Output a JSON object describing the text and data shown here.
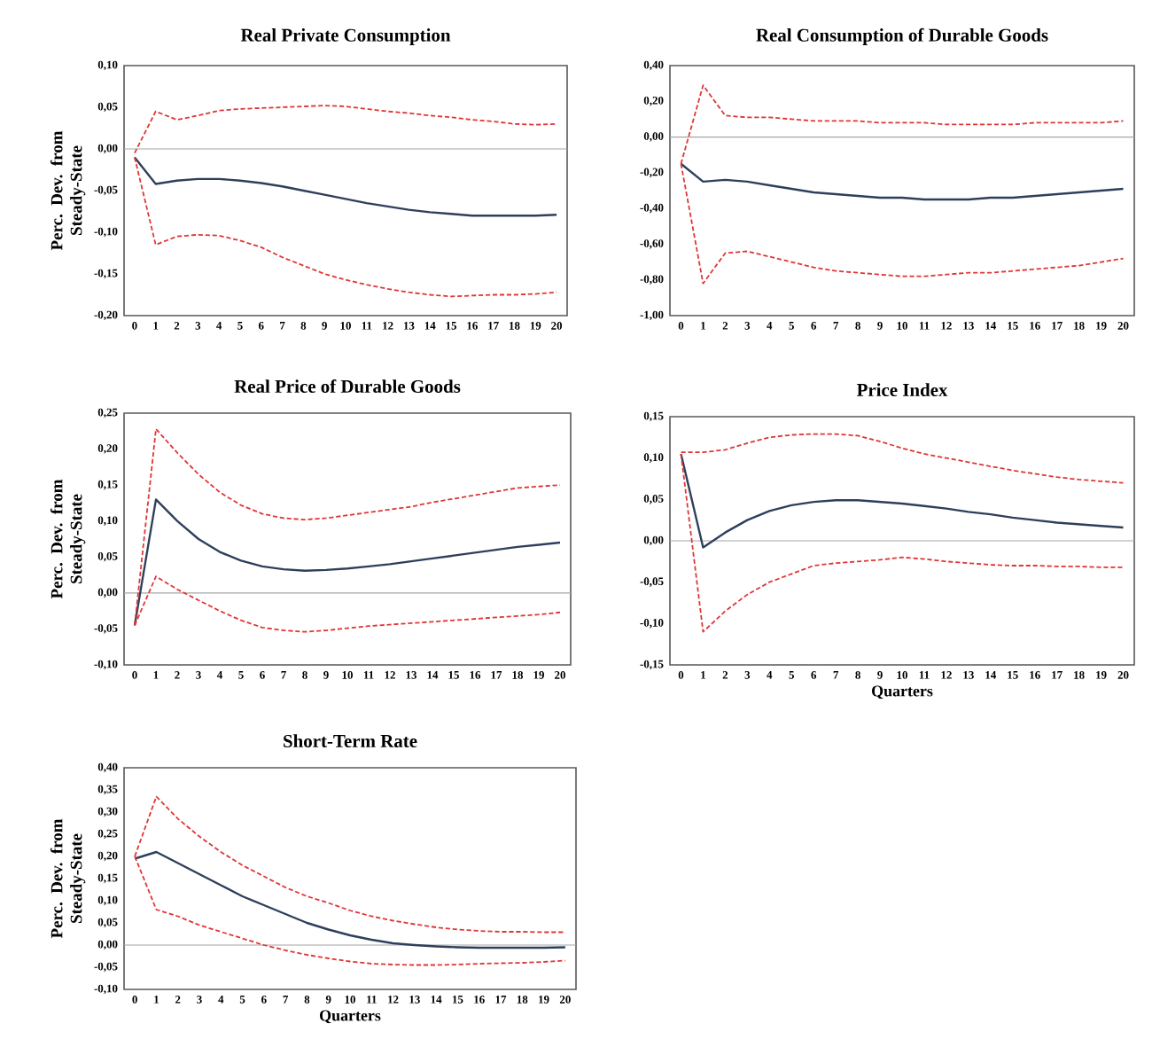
{
  "chart_data": [
    {
      "type": "line",
      "title": "Real Private Consumption",
      "ylabel": "Perc. Dev. from Steady-State",
      "categories": [
        "0",
        "1",
        "2",
        "3",
        "4",
        "5",
        "6",
        "7",
        "8",
        "9",
        "10",
        "11",
        "12",
        "13",
        "14",
        "15",
        "16",
        "17",
        "18",
        "19",
        "20"
      ],
      "ylim": [
        -0.2,
        0.1
      ],
      "yticks": [
        {
          "value": -0.2,
          "label": "-0,20"
        },
        {
          "value": -0.15,
          "label": "-0,15"
        },
        {
          "value": -0.1,
          "label": "-0,10"
        },
        {
          "value": -0.05,
          "label": "-0,05"
        },
        {
          "value": 0,
          "label": "0,00"
        },
        {
          "value": 0.05,
          "label": "0,05"
        },
        {
          "value": 0.1,
          "label": "0,10"
        }
      ],
      "series": [
        {
          "color": "#2e3f5c",
          "line_style": "solid",
          "values": [
            -0.01,
            -0.042,
            -0.038,
            -0.036,
            -0.036,
            -0.038,
            -0.041,
            -0.045,
            -0.05,
            -0.055,
            -0.06,
            -0.065,
            -0.069,
            -0.073,
            -0.076,
            -0.078,
            -0.08,
            -0.08,
            -0.08,
            -0.08,
            -0.079
          ]
        },
        {
          "color": "#e03535",
          "line_style": "dashed",
          "values": [
            -0.005,
            0.045,
            0.035,
            0.04,
            0.046,
            0.048,
            0.049,
            0.05,
            0.051,
            0.052,
            0.051,
            0.048,
            0.045,
            0.043,
            0.04,
            0.038,
            0.035,
            0.033,
            0.03,
            0.029,
            0.03
          ]
        },
        {
          "color": "#e03535",
          "line_style": "dashed",
          "values": [
            -0.01,
            -0.115,
            -0.105,
            -0.103,
            -0.104,
            -0.11,
            -0.118,
            -0.13,
            -0.14,
            -0.15,
            -0.157,
            -0.163,
            -0.168,
            -0.172,
            -0.175,
            -0.177,
            -0.176,
            -0.175,
            -0.175,
            -0.174,
            -0.172
          ]
        }
      ]
    },
    {
      "type": "line",
      "title": "Real Consumption of Durable Goods",
      "categories": [
        "0",
        "1",
        "2",
        "3",
        "4",
        "5",
        "6",
        "7",
        "8",
        "9",
        "10",
        "11",
        "12",
        "13",
        "14",
        "15",
        "16",
        "17",
        "18",
        "19",
        "20"
      ],
      "ylim": [
        -1.0,
        0.4
      ],
      "yticks": [
        {
          "value": -1.0,
          "label": "-1,00"
        },
        {
          "value": -0.8,
          "label": "-0,80"
        },
        {
          "value": -0.6,
          "label": "-0,60"
        },
        {
          "value": -0.4,
          "label": "-0,40"
        },
        {
          "value": -0.2,
          "label": "-0,20"
        },
        {
          "value": 0,
          "label": "0,00"
        },
        {
          "value": 0.2,
          "label": "0,20"
        },
        {
          "value": 0.4,
          "label": "0,40"
        }
      ],
      "series": [
        {
          "color": "#2e3f5c",
          "line_style": "solid",
          "values": [
            -0.15,
            -0.25,
            -0.24,
            -0.25,
            -0.27,
            -0.29,
            -0.31,
            -0.32,
            -0.33,
            -0.34,
            -0.34,
            -0.35,
            -0.35,
            -0.35,
            -0.34,
            -0.34,
            -0.33,
            -0.32,
            -0.31,
            -0.3,
            -0.29
          ]
        },
        {
          "color": "#e03535",
          "line_style": "dashed",
          "values": [
            -0.15,
            0.29,
            0.12,
            0.11,
            0.11,
            0.1,
            0.09,
            0.09,
            0.09,
            0.08,
            0.08,
            0.08,
            0.07,
            0.07,
            0.07,
            0.07,
            0.08,
            0.08,
            0.08,
            0.08,
            0.09
          ]
        },
        {
          "color": "#e03535",
          "line_style": "dashed",
          "values": [
            -0.15,
            -0.82,
            -0.65,
            -0.64,
            -0.67,
            -0.7,
            -0.73,
            -0.75,
            -0.76,
            -0.77,
            -0.78,
            -0.78,
            -0.77,
            -0.76,
            -0.76,
            -0.75,
            -0.74,
            -0.73,
            -0.72,
            -0.7,
            -0.68
          ]
        }
      ]
    },
    {
      "type": "line",
      "title": "Real Price of Durable Goods",
      "ylabel": "Perc. Dev. from Steady-State",
      "categories": [
        "0",
        "1",
        "2",
        "3",
        "4",
        "5",
        "6",
        "7",
        "8",
        "9",
        "10",
        "11",
        "12",
        "13",
        "14",
        "15",
        "16",
        "17",
        "18",
        "19",
        "20"
      ],
      "ylim": [
        -0.1,
        0.25
      ],
      "yticks": [
        {
          "value": -0.1,
          "label": "-0,10"
        },
        {
          "value": -0.05,
          "label": "-0,05"
        },
        {
          "value": 0,
          "label": "0,00"
        },
        {
          "value": 0.05,
          "label": "0,05"
        },
        {
          "value": 0.1,
          "label": "0,10"
        },
        {
          "value": 0.15,
          "label": "0,15"
        },
        {
          "value": 0.2,
          "label": "0,20"
        },
        {
          "value": 0.25,
          "label": "0,25"
        }
      ],
      "series": [
        {
          "color": "#2e3f5c",
          "line_style": "solid",
          "values": [
            -0.045,
            0.13,
            0.1,
            0.075,
            0.057,
            0.045,
            0.037,
            0.033,
            0.031,
            0.032,
            0.034,
            0.037,
            0.04,
            0.044,
            0.048,
            0.052,
            0.056,
            0.06,
            0.064,
            0.067,
            0.07
          ]
        },
        {
          "color": "#e03535",
          "line_style": "dashed",
          "values": [
            -0.045,
            0.228,
            0.195,
            0.165,
            0.14,
            0.122,
            0.11,
            0.104,
            0.102,
            0.104,
            0.108,
            0.112,
            0.116,
            0.12,
            0.126,
            0.131,
            0.136,
            0.141,
            0.146,
            0.148,
            0.15
          ]
        },
        {
          "color": "#e03535",
          "line_style": "dashed",
          "values": [
            -0.045,
            0.023,
            0.005,
            -0.01,
            -0.025,
            -0.038,
            -0.048,
            -0.052,
            -0.054,
            -0.052,
            -0.049,
            -0.046,
            -0.044,
            -0.042,
            -0.04,
            -0.038,
            -0.036,
            -0.034,
            -0.032,
            -0.03,
            -0.027
          ]
        }
      ]
    },
    {
      "type": "line",
      "title": "Price Index",
      "xlabel": "Quarters",
      "categories": [
        "0",
        "1",
        "2",
        "3",
        "4",
        "5",
        "6",
        "7",
        "8",
        "9",
        "10",
        "11",
        "12",
        "13",
        "14",
        "15",
        "16",
        "17",
        "18",
        "19",
        "20"
      ],
      "ylim": [
        -0.15,
        0.15
      ],
      "yticks": [
        {
          "value": -0.15,
          "label": "-0,15"
        },
        {
          "value": -0.1,
          "label": "-0,10"
        },
        {
          "value": -0.05,
          "label": "-0,05"
        },
        {
          "value": 0,
          "label": "0,00"
        },
        {
          "value": 0.05,
          "label": "0,05"
        },
        {
          "value": 0.1,
          "label": "0,10"
        },
        {
          "value": 0.15,
          "label": "0,15"
        }
      ],
      "series": [
        {
          "color": "#2e3f5c",
          "line_style": "solid",
          "values": [
            0.105,
            -0.008,
            0.01,
            0.025,
            0.036,
            0.043,
            0.047,
            0.049,
            0.049,
            0.047,
            0.045,
            0.042,
            0.039,
            0.035,
            0.032,
            0.028,
            0.025,
            0.022,
            0.02,
            0.018,
            0.016
          ]
        },
        {
          "color": "#e03535",
          "line_style": "dashed",
          "values": [
            0.107,
            0.107,
            0.11,
            0.118,
            0.125,
            0.128,
            0.129,
            0.129,
            0.127,
            0.12,
            0.112,
            0.105,
            0.1,
            0.095,
            0.09,
            0.085,
            0.081,
            0.077,
            0.074,
            0.072,
            0.07
          ]
        },
        {
          "color": "#e03535",
          "line_style": "dashed",
          "values": [
            0.105,
            -0.11,
            -0.085,
            -0.065,
            -0.05,
            -0.04,
            -0.03,
            -0.027,
            -0.025,
            -0.023,
            -0.02,
            -0.022,
            -0.025,
            -0.027,
            -0.029,
            -0.03,
            -0.03,
            -0.031,
            -0.031,
            -0.032,
            -0.032
          ]
        }
      ]
    },
    {
      "type": "line",
      "title": "Short-Term Rate",
      "xlabel": "Quarters",
      "ylabel": "Perc. Dev. from Steady-State",
      "categories": [
        "0",
        "1",
        "2",
        "3",
        "4",
        "5",
        "6",
        "7",
        "8",
        "9",
        "10",
        "11",
        "12",
        "13",
        "14",
        "15",
        "16",
        "17",
        "18",
        "19",
        "20"
      ],
      "ylim": [
        -0.1,
        0.4
      ],
      "yticks": [
        {
          "value": -0.1,
          "label": "-0,10"
        },
        {
          "value": -0.05,
          "label": "-0,05"
        },
        {
          "value": 0,
          "label": "0,00"
        },
        {
          "value": 0.05,
          "label": "0,05"
        },
        {
          "value": 0.1,
          "label": "0,10"
        },
        {
          "value": 0.15,
          "label": "0,15"
        },
        {
          "value": 0.2,
          "label": "0,20"
        },
        {
          "value": 0.25,
          "label": "0,25"
        },
        {
          "value": 0.3,
          "label": "0,30"
        },
        {
          "value": 0.35,
          "label": "0,35"
        },
        {
          "value": 0.4,
          "label": "0,40"
        }
      ],
      "series": [
        {
          "color": "#2e3f5c",
          "line_style": "solid",
          "values": [
            0.195,
            0.21,
            0.185,
            0.16,
            0.135,
            0.11,
            0.09,
            0.07,
            0.05,
            0.035,
            0.022,
            0.012,
            0.004,
            0.0,
            -0.003,
            -0.005,
            -0.006,
            -0.006,
            -0.006,
            -0.006,
            -0.005
          ]
        },
        {
          "color": "#e03535",
          "line_style": "dashed",
          "values": [
            0.2,
            0.335,
            0.285,
            0.245,
            0.21,
            0.18,
            0.155,
            0.13,
            0.11,
            0.095,
            0.078,
            0.065,
            0.055,
            0.047,
            0.04,
            0.035,
            0.032,
            0.03,
            0.03,
            0.029,
            0.029
          ]
        },
        {
          "color": "#e03535",
          "line_style": "dashed",
          "values": [
            0.2,
            0.08,
            0.065,
            0.045,
            0.03,
            0.015,
            0.0,
            -0.012,
            -0.022,
            -0.03,
            -0.037,
            -0.042,
            -0.044,
            -0.045,
            -0.045,
            -0.044,
            -0.042,
            -0.041,
            -0.04,
            -0.038,
            -0.035
          ]
        }
      ]
    }
  ]
}
